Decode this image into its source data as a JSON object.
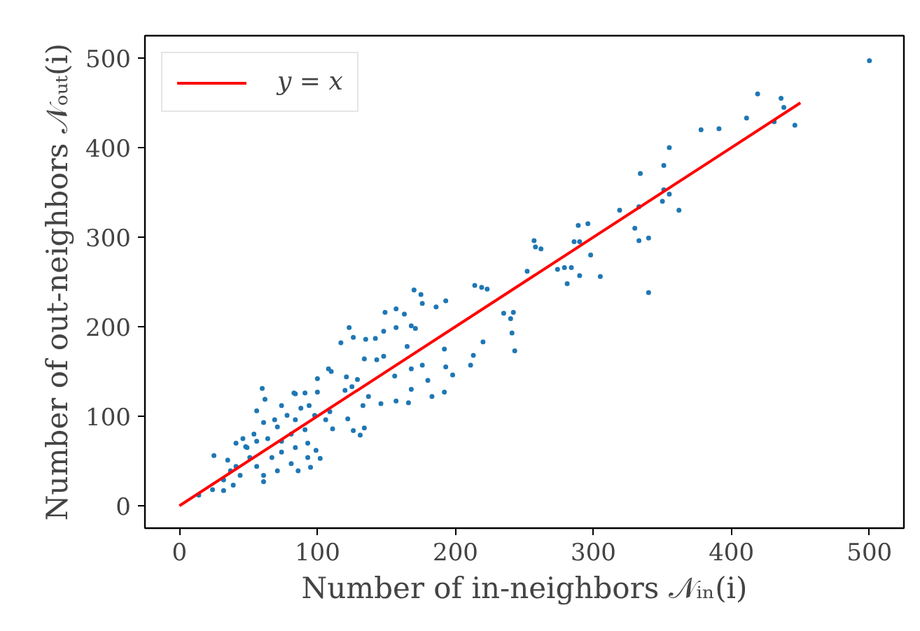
{
  "chart_data": {
    "type": "scatter",
    "xlabel": "Number of in-neighbors 𝒩ᵢₙ(i)",
    "ylabel": "Number of out-neighbors 𝒩ₒᵤₜ(i)",
    "xlim": [
      -25,
      525
    ],
    "ylim": [
      -25,
      525
    ],
    "xticks": [
      0,
      100,
      200,
      300,
      400,
      500
    ],
    "yticks": [
      0,
      100,
      200,
      300,
      400,
      500
    ],
    "grid": false,
    "legend": "top left",
    "marker": "circle",
    "series": [
      {
        "color": "#1f77b4",
        "x": [
          500,
          419,
          436,
          438,
          446,
          411,
          431,
          378,
          391,
          355,
          351,
          334,
          351,
          355,
          350,
          362,
          333,
          319,
          330,
          333,
          340,
          340,
          296,
          289,
          286,
          290,
          298,
          305,
          290,
          281,
          284,
          279,
          274,
          262,
          258,
          257,
          252,
          214,
          219,
          223,
          235,
          242,
          240,
          241,
          243,
          220,
          211,
          213,
          198,
          192,
          183,
          192,
          193,
          170,
          175,
          176,
          186,
          193,
          149,
          157,
          163,
          171,
          168,
          123,
          126,
          117,
          148,
          157,
          135,
          142,
          134,
          143,
          165,
          156,
          148,
          168,
          176,
          168,
          180,
          166,
          157,
          146,
          108,
          110,
          100,
          91,
          84,
          100,
          121,
          129,
          125,
          120,
          133,
          137,
          109,
          122,
          126,
          131,
          134,
          106,
          111,
          60,
          62,
          56,
          74,
          83,
          88,
          94,
          25,
          35,
          24,
          14,
          32,
          41,
          48,
          54,
          61,
          71,
          64,
          74,
          81,
          84,
          93,
          99,
          102,
          95,
          86,
          93,
          51,
          56,
          61,
          61,
          41,
          44,
          37,
          32,
          39,
          67,
          74,
          81,
          71,
          49,
          56,
          46,
          84,
          91,
          98,
          78,
          69
        ],
        "values": [
          497,
          460,
          455,
          445,
          425,
          433,
          429,
          420,
          421,
          400,
          380,
          371,
          353,
          348,
          340,
          330,
          334,
          330,
          310,
          296,
          299,
          238,
          315,
          313,
          295,
          295,
          280,
          256,
          257,
          248,
          266,
          266,
          264,
          287,
          289,
          296,
          262,
          246,
          244,
          242,
          215,
          216,
          209,
          193,
          173,
          183,
          157,
          168,
          146,
          127,
          122,
          175,
          155,
          241,
          236,
          226,
          222,
          229,
          216,
          220,
          214,
          198,
          201,
          199,
          188,
          182,
          195,
          199,
          186,
          187,
          164,
          163,
          178,
          145,
          167,
          153,
          157,
          130,
          140,
          115,
          117,
          114,
          153,
          150,
          142,
          126,
          125,
          127,
          144,
          141,
          133,
          129,
          112,
          122,
          105,
          97,
          84,
          79,
          87,
          96,
          86,
          131,
          119,
          106,
          112,
          126,
          109,
          112,
          56,
          51,
          18,
          12,
          17,
          70,
          66,
          80,
          93,
          88,
          75,
          72,
          80,
          65,
          54,
          62,
          53,
          43,
          39,
          70,
          54,
          44,
          34,
          27,
          44,
          34,
          39,
          29,
          23,
          54,
          60,
          47,
          39,
          65,
          72,
          75,
          96,
          85,
          101,
          101,
          96
        ]
      },
      {
        "type": "line",
        "name": "y = x",
        "color": "#ff0000",
        "marker": "none",
        "line_style": "solid",
        "x": [
          0,
          450
        ],
        "values": [
          0,
          450
        ]
      }
    ]
  }
}
